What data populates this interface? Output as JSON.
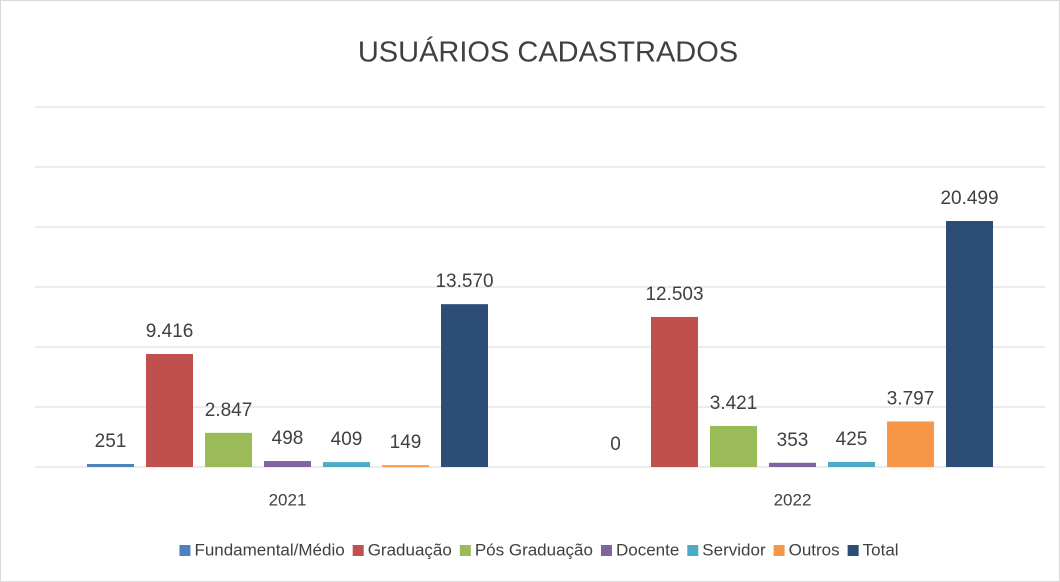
{
  "chart_data": {
    "type": "bar",
    "title": "USUÁRIOS CADASTRADOS",
    "categories": [
      "2021",
      "2022"
    ],
    "series": [
      {
        "name": "Fundamental/Médio",
        "color": "#4f81bd",
        "values": [
          251,
          0
        ],
        "value_labels": [
          "251",
          "0"
        ]
      },
      {
        "name": "Graduação",
        "color": "#c0504d",
        "values": [
          9416,
          12503
        ],
        "value_labels": [
          "9.416",
          "12.503"
        ]
      },
      {
        "name": "Pós Graduação",
        "color": "#9bbb59",
        "values": [
          2847,
          3421
        ],
        "value_labels": [
          "2.847",
          "3.421"
        ]
      },
      {
        "name": "Docente",
        "color": "#8064a2",
        "values": [
          498,
          353
        ],
        "value_labels": [
          "498",
          "353"
        ]
      },
      {
        "name": "Servidor",
        "color": "#4bacc6",
        "values": [
          409,
          425
        ],
        "value_labels": [
          "409",
          "425"
        ]
      },
      {
        "name": "Outros",
        "color": "#f79646",
        "values": [
          149,
          3797
        ],
        "value_labels": [
          "149",
          "3.797"
        ]
      },
      {
        "name": "Total",
        "color": "#2c4d75",
        "values": [
          13570,
          20499
        ],
        "value_labels": [
          "13.570",
          "20.499"
        ]
      }
    ],
    "ylim": [
      0,
      30000
    ],
    "yticks": [
      0,
      5000,
      10000,
      15000,
      20000,
      25000,
      30000
    ],
    "grid": true,
    "legend": "bottom"
  }
}
